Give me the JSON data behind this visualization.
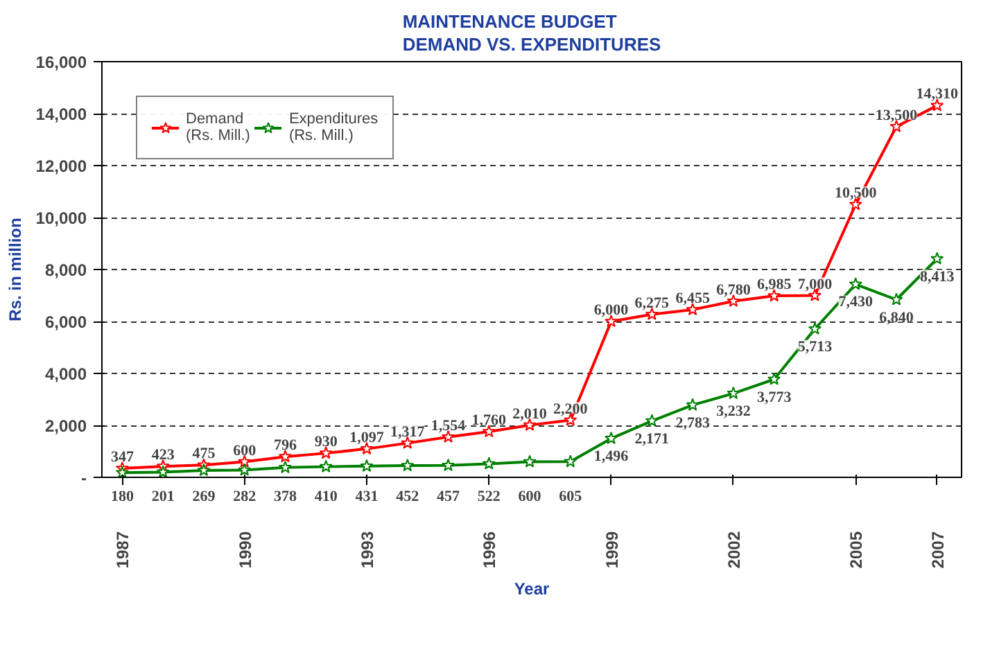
{
  "chart_data": {
    "type": "line",
    "title": "MAINTENANCE BUDGET\nDEMAND VS. EXPENDITURES",
    "xlabel": "Year",
    "ylabel": "Rs. in million",
    "x": [
      1987,
      1988,
      1989,
      1990,
      1991,
      1992,
      1993,
      1994,
      1995,
      1996,
      1997,
      1998,
      1999,
      2000,
      2001,
      2002,
      2003,
      2004,
      2005,
      2006,
      2007
    ],
    "series": [
      {
        "name": "Demand\n(Rs. Mill.)",
        "color": "#ff0000",
        "values": [
          347,
          423,
          475,
          600,
          796,
          930,
          1097,
          1317,
          1554,
          1760,
          2010,
          2200,
          6000,
          6275,
          6455,
          6780,
          6985,
          7000,
          10500,
          13500,
          14310
        ],
        "value_labels": [
          "347",
          "423",
          "475",
          "600",
          "796",
          "930",
          "1,097",
          "1,317",
          "1,554",
          "1,760",
          "2,010",
          "2,200",
          "6,000",
          "6,275",
          "6,455",
          "6,780",
          "6,985",
          "7,000",
          "10,500",
          "13,500",
          "14,310"
        ]
      },
      {
        "name": "Expenditures\n(Rs. Mill.)",
        "color": "#008000",
        "values": [
          180,
          201,
          269,
          282,
          378,
          410,
          431,
          452,
          457,
          522,
          600,
          605,
          1496,
          2171,
          2783,
          3232,
          3773,
          5713,
          7430,
          6840,
          8413
        ],
        "value_labels": [
          "180",
          "201",
          "269",
          "282",
          "378",
          "410",
          "431",
          "452",
          "457",
          "522",
          "600",
          "605",
          "1,496",
          "2,171",
          "2,783",
          "3,232",
          "3,773",
          "5,713",
          "7,430",
          "6,840",
          "8,413"
        ]
      }
    ],
    "xlim": [
      1986.5,
      2007.6
    ],
    "xticks": [
      1987,
      1990,
      1993,
      1996,
      1999,
      2002,
      2005,
      2007
    ],
    "ylim": [
      0,
      16000
    ],
    "yticks": [
      {
        "value": 0,
        "label": "-"
      },
      {
        "value": 2000,
        "label": "2,000"
      },
      {
        "value": 4000,
        "label": "4,000"
      },
      {
        "value": 6000,
        "label": "6,000"
      },
      {
        "value": 8000,
        "label": "8,000"
      },
      {
        "value": 10000,
        "label": "10,000"
      },
      {
        "value": 12000,
        "label": "12,000"
      },
      {
        "value": 14000,
        "label": "14,000"
      },
      {
        "value": 16000,
        "label": "16,000"
      }
    ],
    "grid": "y",
    "legend": "top left",
    "marker": "star",
    "line_style": "solid"
  }
}
